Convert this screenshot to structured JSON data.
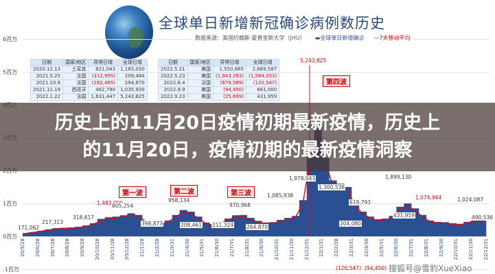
{
  "header": {
    "title": "全球单日新增新冠确诊病例数历史",
    "source": "数据来源：美国约翰斯·霍普金斯大学（JHU）",
    "legend_bars": "全球单日新增确诊",
    "legend_line": "7天移动平均"
  },
  "overlay": {
    "line1": "历史上的11月20日疫情初期最新疫情，历史上",
    "line2": "的11月20日，疫情初期的最新疫情洞察"
  },
  "watermark": "搜狐号@雪豹XueXiao",
  "table_left": {
    "headers": [
      "日期",
      "国家/地区",
      "异常日增",
      "全球日增"
    ],
    "rows": [
      [
        "2020.12.13",
        "土耳其",
        "821,043",
        "1,183,030"
      ],
      [
        "2021.5.25",
        "法国",
        "(312,995)",
        "209,484"
      ],
      [
        "2021.10.8",
        "法国",
        "(162,465)",
        "294,870"
      ],
      [
        "2021.11.19",
        "西班牙",
        "462,790",
        "1,035,930"
      ],
      [
        "2022.1.22",
        "法国",
        "1,631,447",
        "5,243,825"
      ]
    ]
  },
  "table_right": {
    "headers": [
      "日期",
      "国家/地区",
      "异常日增",
      "全球日增"
    ],
    "rows": [
      [
        "2022.5.21",
        "美国",
        "1,550,865",
        "2,689,587"
      ],
      [
        "2022.5.23",
        "美国",
        "(1,943,283)",
        "(1,584,033)"
      ],
      [
        "2022.8.4",
        "法国",
        "(679,589)",
        "(120,547)"
      ],
      [
        "2022.9.9",
        "美国",
        "(94,450)",
        "661,000"
      ],
      [
        "2022.9.23",
        "美国",
        "(25,699)",
        "431,959"
      ]
    ]
  },
  "colors": {
    "bars": "#2b4f93",
    "line": "#cc1111",
    "title": "#2b4a78"
  },
  "chart_data": {
    "type": "bar",
    "title": "全球单日新增新冠确诊病例数历史",
    "ylabel": "",
    "ylim": [
      -1,
      6
    ],
    "yticks": [
      "-1百万",
      "0百万",
      "1百万",
      "2百万",
      "3百万",
      "4百万",
      "5百万",
      "6百万"
    ],
    "xticks": [
      "20/5/28",
      "20/6/28",
      "20/7/28",
      "20/8/28",
      "20/9/28",
      "20/10/28",
      "20/11/28",
      "20/12/28",
      "21/1/28",
      "21/2/28",
      "21/3/31",
      "21/4/30",
      "21/5/31",
      "21/6/30",
      "21/7/31",
      "21/8/31",
      "21/9/30",
      "21/10/31",
      "21/11/30",
      "21/12/31",
      "22/1/31",
      "22/2/28",
      "22/3/31",
      "22/4/30",
      "22/5/31",
      "22/6/30",
      "22/7/31",
      "22/8/31",
      "22/9/30",
      "22/10/31",
      "22/11/30",
      "22/12/31"
    ],
    "series": [
      {
        "name": "全球单日新增确诊",
        "unit": "millions",
        "values": [
          0.1,
          0.13,
          0.17,
          0.21,
          0.25,
          0.26,
          0.27,
          0.29,
          0.33,
          0.4,
          0.53,
          0.58,
          0.6,
          0.64,
          0.7,
          0.65,
          0.48,
          0.38,
          0.4,
          0.48,
          0.65,
          0.8,
          0.75,
          0.6,
          0.42,
          0.37,
          0.44,
          0.54,
          0.64,
          0.65,
          0.56,
          0.47,
          0.42,
          0.43,
          0.5,
          0.56,
          0.62,
          1.1,
          2.6,
          3.3,
          2.4,
          1.7,
          1.6,
          1.5,
          1.0,
          0.75,
          0.6,
          0.52,
          0.54,
          0.62,
          0.9,
          1.0,
          0.85,
          0.65,
          0.48,
          0.44,
          0.43,
          0.4,
          0.38,
          0.44,
          0.52,
          0.48
        ]
      }
    ],
    "annotations": [
      "171,062",
      "217,313",
      "318,617",
      "1,483,000",
      "805,254",
      "398,873",
      "958,134",
      "208,461",
      "211,324",
      "970,968",
      "264,870",
      "1,085,938",
      "1,978,043",
      "5,243,825",
      "1,300,538",
      "619,793",
      "204,080",
      "(120,547)",
      "1,899,130",
      "1,074,944",
      "431,959",
      "(94,450)",
      "1,024,087",
      "490,536"
    ],
    "waves": [
      "第一波",
      "第二波",
      "第三波",
      "第四波"
    ]
  }
}
